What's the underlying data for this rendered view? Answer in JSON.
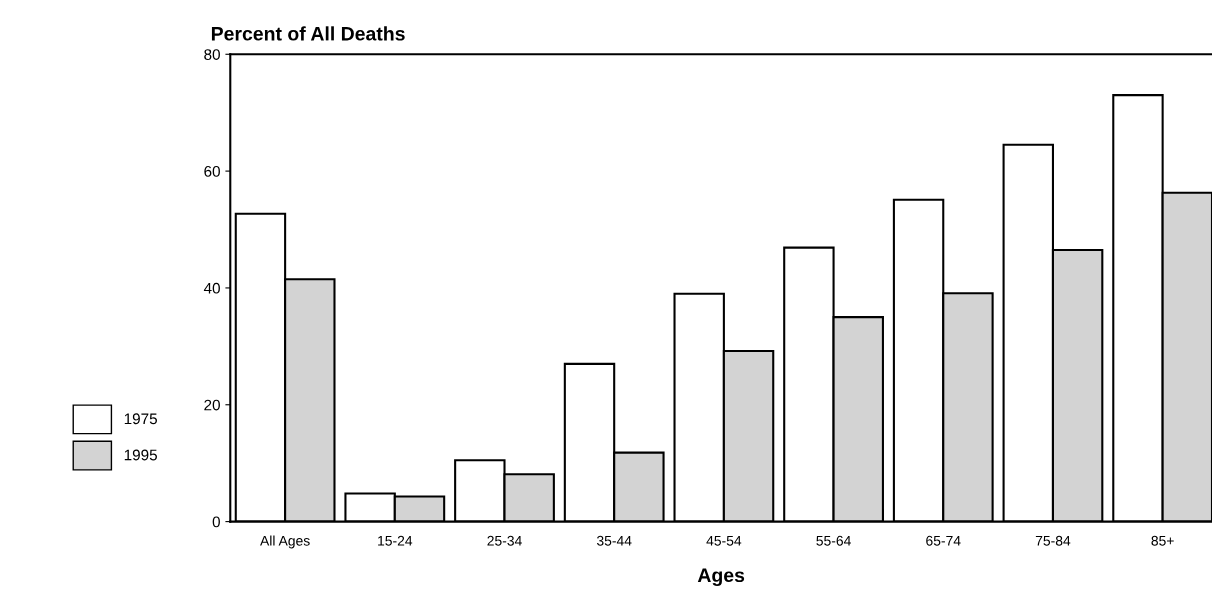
{
  "chart_data": {
    "type": "bar",
    "title": "Percent of All Deaths",
    "xlabel": "Ages",
    "categories": [
      "All Ages",
      "15-24",
      "25-34",
      "35-44",
      "45-54",
      "55-64",
      "65-74",
      "75-84",
      "85+"
    ],
    "series": [
      {
        "name": "1975",
        "color": "#ffffff",
        "values": [
          52.7,
          4.8,
          10.5,
          27.0,
          39.0,
          46.9,
          55.1,
          64.5,
          73.0
        ]
      },
      {
        "name": "1995",
        "color": "#d3d3d3",
        "values": [
          41.5,
          4.3,
          8.1,
          11.8,
          29.2,
          35.0,
          39.1,
          46.5,
          56.3
        ]
      }
    ],
    "ylim": [
      0,
      80
    ],
    "yticks": [
      0,
      20,
      40,
      60,
      80
    ],
    "grid": false,
    "legend": "left"
  }
}
